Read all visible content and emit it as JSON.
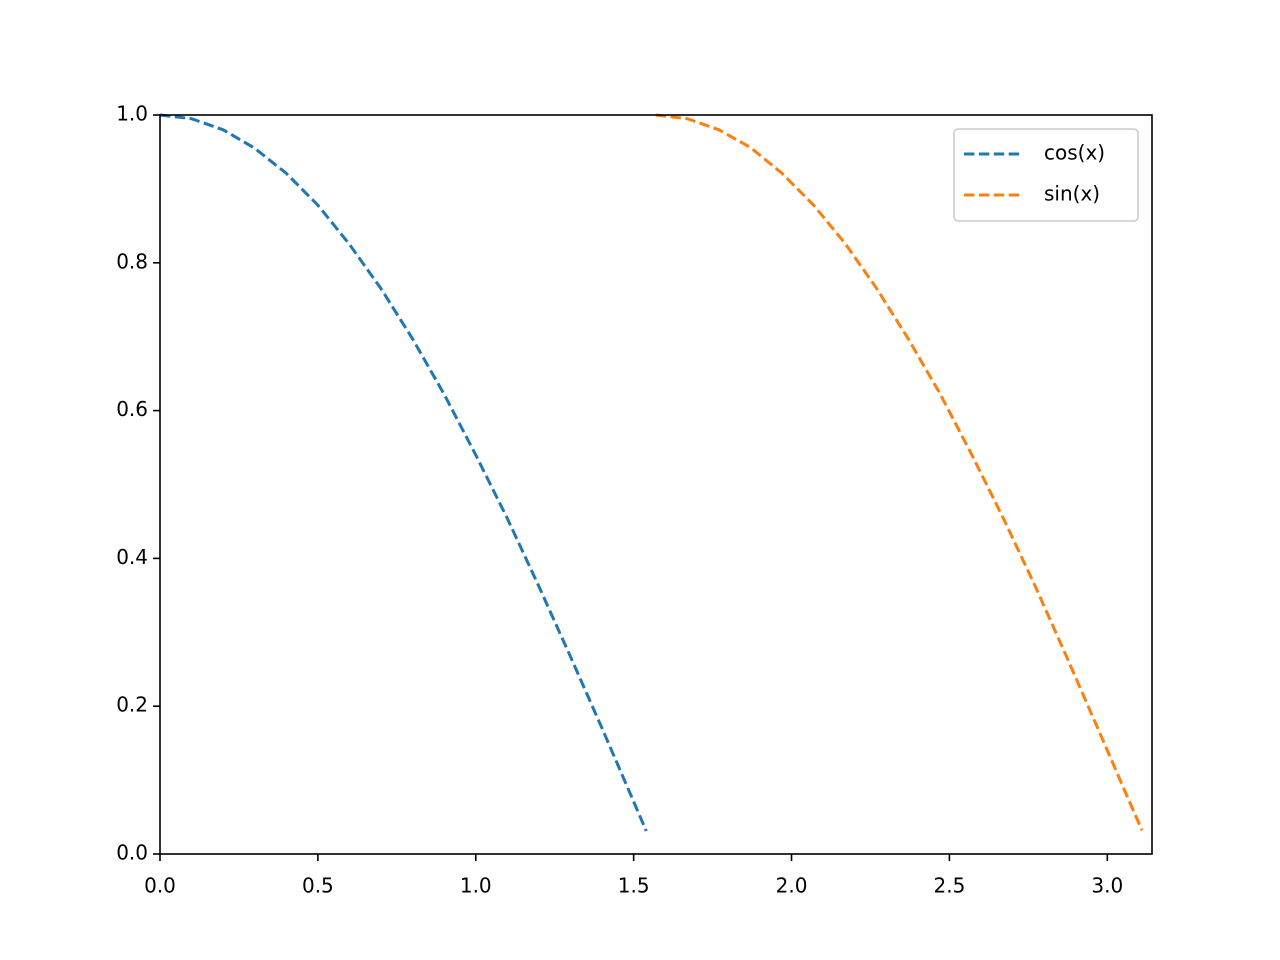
{
  "chart_data": {
    "type": "line",
    "series": [
      {
        "name": "cos(x)",
        "color": "#1f77b4",
        "x": [
          0,
          0.1,
          0.2,
          0.3,
          0.4,
          0.5,
          0.6,
          0.7,
          0.8,
          0.9,
          1.0,
          1.1,
          1.2,
          1.3,
          1.4,
          1.5,
          1.54
        ],
        "values": [
          1,
          0.995,
          0.98,
          0.955,
          0.921,
          0.878,
          0.825,
          0.765,
          0.697,
          0.622,
          0.54,
          0.454,
          0.362,
          0.267,
          0.17,
          0.071,
          0.031
        ]
      },
      {
        "name": "sin(x)",
        "color": "#ff7f0e",
        "x": [
          1.57,
          1.67,
          1.77,
          1.87,
          1.97,
          2.07,
          2.17,
          2.27,
          2.37,
          2.47,
          2.57,
          2.67,
          2.77,
          2.87,
          2.97,
          3.07,
          3.11
        ],
        "values": [
          1,
          0.995,
          0.98,
          0.956,
          0.921,
          0.878,
          0.826,
          0.765,
          0.697,
          0.623,
          0.541,
          0.455,
          0.364,
          0.268,
          0.17,
          0.071,
          0.032
        ]
      }
    ],
    "xlim": [
      0,
      3.1416
    ],
    "ylim": [
      0,
      1
    ],
    "xticks": [
      {
        "value": 0,
        "label": "0.0"
      },
      {
        "value": 0.5,
        "label": "0.5"
      },
      {
        "value": 1,
        "label": "1.0"
      },
      {
        "value": 1.5,
        "label": "1.5"
      },
      {
        "value": 2,
        "label": "2.0"
      },
      {
        "value": 2.5,
        "label": "2.5"
      },
      {
        "value": 3,
        "label": "3.0"
      }
    ],
    "yticks": [
      {
        "value": 0,
        "label": "0.0"
      },
      {
        "value": 0.2,
        "label": "0.2"
      },
      {
        "value": 0.4,
        "label": "0.4"
      },
      {
        "value": 0.6,
        "label": "0.6"
      },
      {
        "value": 0.8,
        "label": "0.8"
      },
      {
        "value": 1,
        "label": "1.0"
      }
    ],
    "legend": "upper right",
    "line_style": "dashed"
  }
}
